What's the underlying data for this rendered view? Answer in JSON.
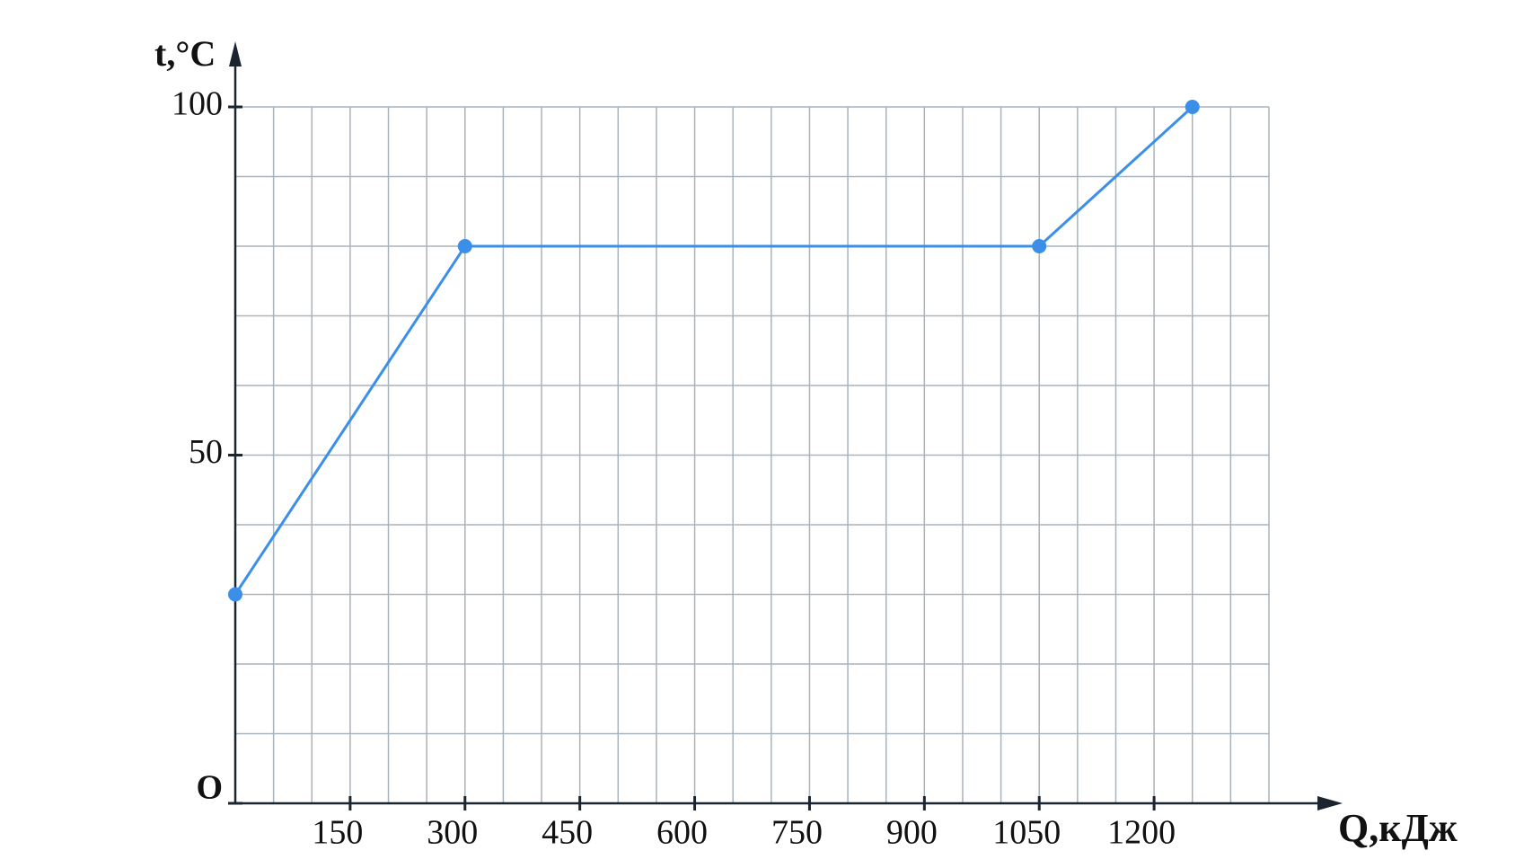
{
  "chart_data": {
    "type": "line",
    "x_label": "Q,кДж",
    "y_label": "t,°C",
    "x": [
      0,
      300,
      1050,
      1250
    ],
    "series": [
      {
        "color": "#3b8fe8",
        "values": [
          30,
          80,
          80,
          100
        ]
      }
    ],
    "xlim": [
      0,
      1350
    ],
    "ylim": [
      0,
      100
    ],
    "xticks": [
      150,
      300,
      450,
      600,
      750,
      900,
      1050,
      1200
    ],
    "yticks": [
      {
        "value": 0,
        "label": "O"
      },
      50,
      100
    ],
    "x_gridlines": [
      50,
      100,
      150,
      200,
      250,
      300,
      350,
      400,
      450,
      500,
      550,
      600,
      650,
      700,
      750,
      800,
      850,
      900,
      950,
      1000,
      1050,
      1100,
      1150,
      1200,
      1250,
      1300,
      1350
    ],
    "y_gridlines": [
      10,
      20,
      30,
      40,
      50,
      60,
      70,
      80,
      90,
      100
    ],
    "grid": true
  }
}
